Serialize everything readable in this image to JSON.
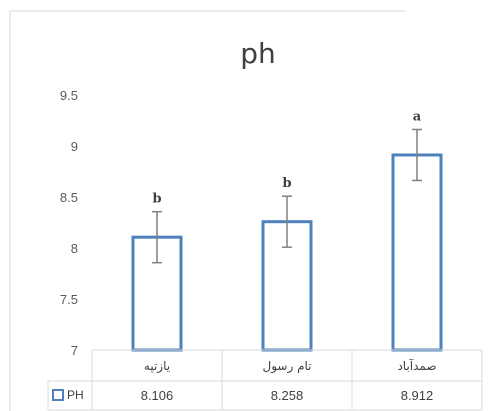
{
  "chart_data": {
    "type": "bar",
    "title": "ph",
    "categories": [
      "یازتپه",
      "تام رسول",
      "صمدآباد"
    ],
    "series": [
      {
        "name": "PH",
        "values": [
          8.106,
          8.258,
          8.912
        ],
        "errors": [
          0.25,
          0.25,
          0.25
        ]
      }
    ],
    "value_labels": [
      "8.106",
      "8.258",
      "8.912"
    ],
    "significance_labels": [
      "b",
      "b",
      "a"
    ],
    "ylim": [
      7,
      9.5
    ],
    "yticks": [
      "9.5",
      "9",
      "8.5",
      "8",
      "7.5",
      "7"
    ],
    "bar_fill": "#ffffff",
    "bar_color": "#4f81bd",
    "error_bar_color": "#808080",
    "grid": false,
    "legend": "bottom-left, inside data table"
  }
}
